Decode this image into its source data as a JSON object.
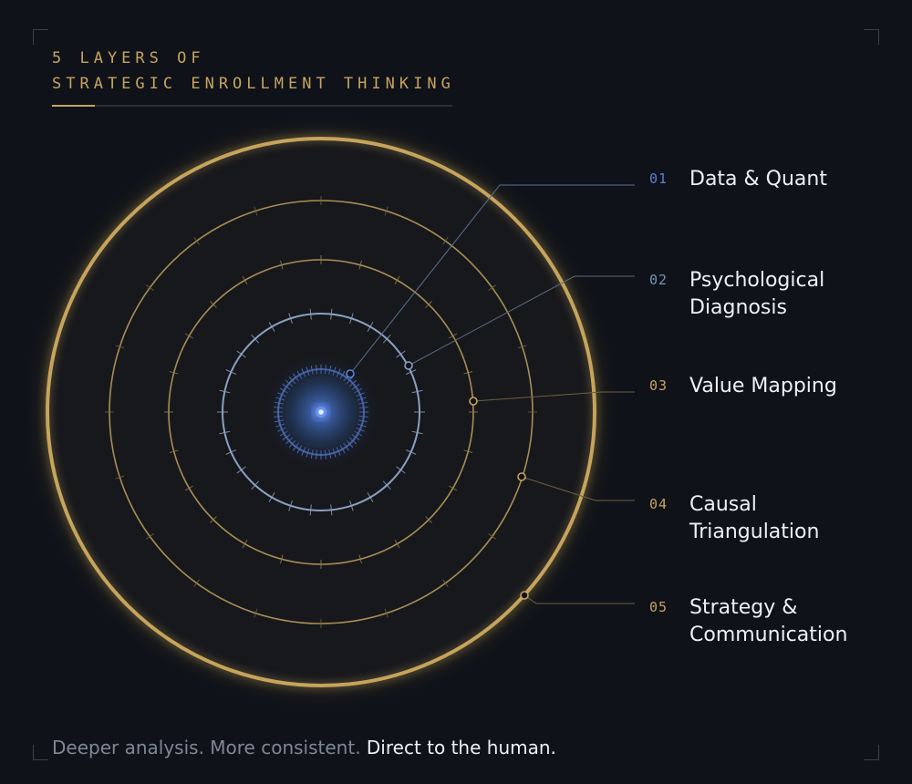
{
  "header": {
    "line1": "5 LAYERS OF",
    "line2": "STRATEGIC ENROLLMENT THINKING"
  },
  "layers": [
    {
      "num": "01",
      "label": "Data & Quant",
      "color": "#5b7fd8"
    },
    {
      "num": "02",
      "label": "Psychological Diagnosis",
      "color": "#7a92b8"
    },
    {
      "num": "03",
      "label": "Value Mapping",
      "color": "#c6a45c"
    },
    {
      "num": "04",
      "label": "Causal Triangulation",
      "color": "#c6a45c"
    },
    {
      "num": "05",
      "label": "Strategy & Communication",
      "color": "#c6a45c"
    }
  ],
  "footer": {
    "muted": "Deeper analysis. More consistent.",
    "bright": "Direct to the human."
  },
  "colors": {
    "background": "#0f1219",
    "gold": "#c6a45c",
    "blue": "#5b7fd8",
    "steel": "#7a92b8",
    "text": "#eef0f4"
  }
}
